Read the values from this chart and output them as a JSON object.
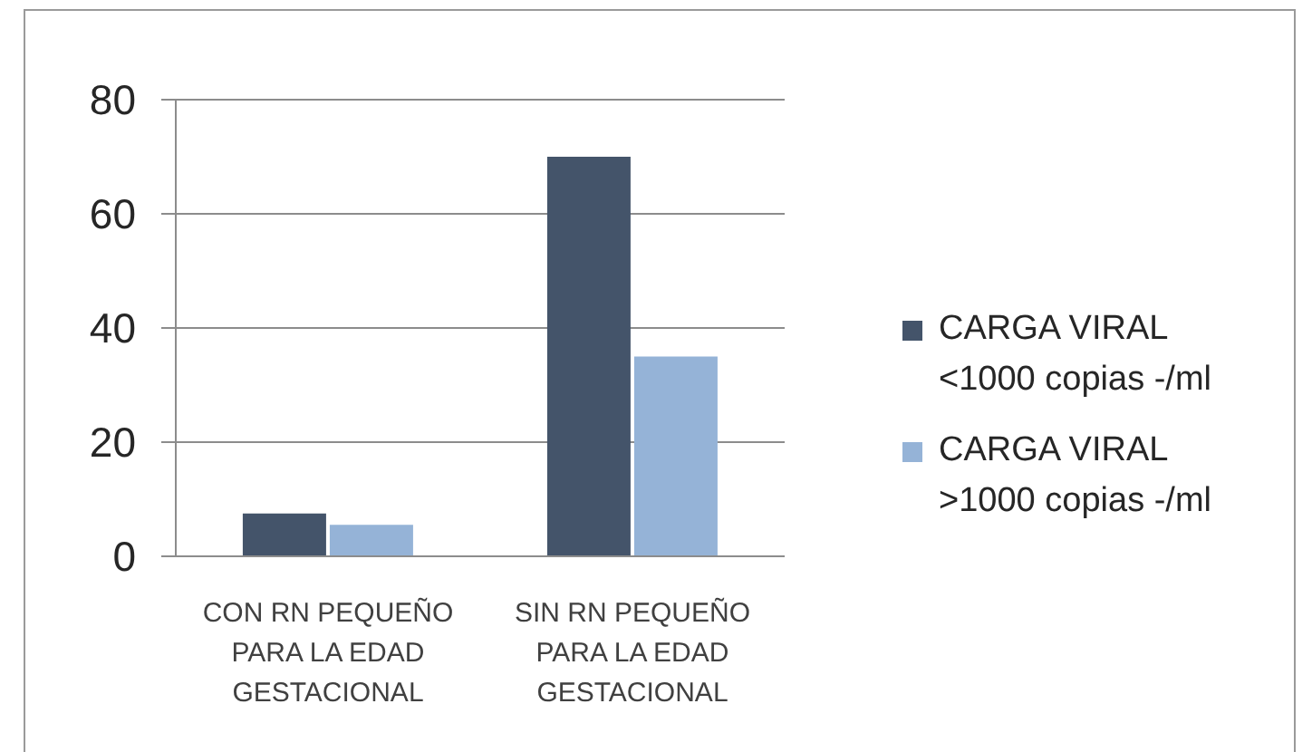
{
  "chart_data": {
    "type": "bar",
    "categories": [
      "CON RN PEQUEÑO PARA LA EDAD GESTACIONAL",
      "SIN RN PEQUEÑO PARA LA EDAD GESTACIONAL"
    ],
    "series": [
      {
        "name": "CARGA VIRAL <1000 copias -/ml",
        "color": "#44546a",
        "values": [
          7.5,
          70
        ]
      },
      {
        "name": "CARGA VIRAL >1000 copias -/ml",
        "color": "#95b3d7",
        "values": [
          5.5,
          35
        ]
      }
    ],
    "ylim": [
      0,
      80
    ],
    "yticks": [
      0,
      20,
      40,
      60,
      80
    ],
    "grid": "y",
    "legend": "right"
  }
}
